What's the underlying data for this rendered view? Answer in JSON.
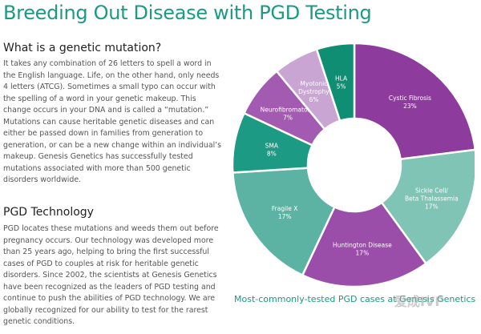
{
  "page": {
    "title": "Breeding Out Disease with PGD Testing"
  },
  "sections": [
    {
      "heading": "What is a genetic mutation?",
      "body": "It takes any combination of 26 letters to spell a word in the English language. Life, on the other hand, only needs 4 letters (ATCG). Sometimes a small typo can occur with the spelling of a word in your genetic makeup. This change occurs in your DNA and is called a “mutation.” Mutations can cause heritable genetic diseases and can either be passed down in families from generation to generation, or can be a new change within an individual’s makeup. Genesis Genetics has successfully tested mutations associated with more than 500 genetic disorders worldwide."
    },
    {
      "heading": "PGD Technology",
      "body": "PGD locates these mutations and weeds them out before pregnancy occurs. Our technology was developed more than 25 years ago, helping to bring the first successful cases of PGD to couples at risk for heritable genetic disorders. Since 2002, the scientists at Genesis Genetics have been recognized as the leaders of PGD testing and continue to push the abilities of PGD technology. We are globally recognized for our ability to test for the rarest genetic conditions."
    }
  ],
  "chart_data": {
    "type": "pie",
    "variant": "donut",
    "title": "Most-commonly-tested PGD cases at Genesis Genetics",
    "series": [
      {
        "name": "Cystic Fibrosis",
        "value": 23,
        "value_label": "23%",
        "color": "#8e3b9e",
        "label_lines": [
          "Cystic Fibrosis",
          "23%"
        ]
      },
      {
        "name": "Sickle Cell/ Beta Thalassemia",
        "value": 17,
        "value_label": "17%",
        "color": "#7fc4b4",
        "label_lines": [
          "Sickle Cell/",
          "Beta Thalassemia",
          "17%"
        ]
      },
      {
        "name": "Huntington Disease",
        "value": 17,
        "value_label": "17%",
        "color": "#9a4ea9",
        "label_lines": [
          "Huntington Disease",
          "17%"
        ]
      },
      {
        "name": "Fragile X",
        "value": 17,
        "value_label": "17%",
        "color": "#5db3a3",
        "label_lines": [
          "Fragile X",
          "17%"
        ]
      },
      {
        "name": "SMA",
        "value": 8,
        "value_label": "8%",
        "color": "#1c9a83",
        "label_lines": [
          "SMA",
          "8%"
        ]
      },
      {
        "name": "Neurofibromatosis",
        "value": 7,
        "value_label": "7%",
        "color": "#a35bb1",
        "label_lines": [
          "Neurofibromatosis",
          "7%"
        ]
      },
      {
        "name": "Myotonic Dystrophy",
        "value": 6,
        "value_label": "6%",
        "color": "#c9a5d3",
        "label_lines": [
          "Myotonic",
          "Dystrophy",
          "6%"
        ]
      },
      {
        "name": "HLA",
        "value": 5,
        "value_label": "5%",
        "color": "#0f8e74",
        "label_lines": [
          "HLA",
          "5%"
        ]
      }
    ]
  },
  "watermark": {
    "text": "爱成IVF"
  }
}
